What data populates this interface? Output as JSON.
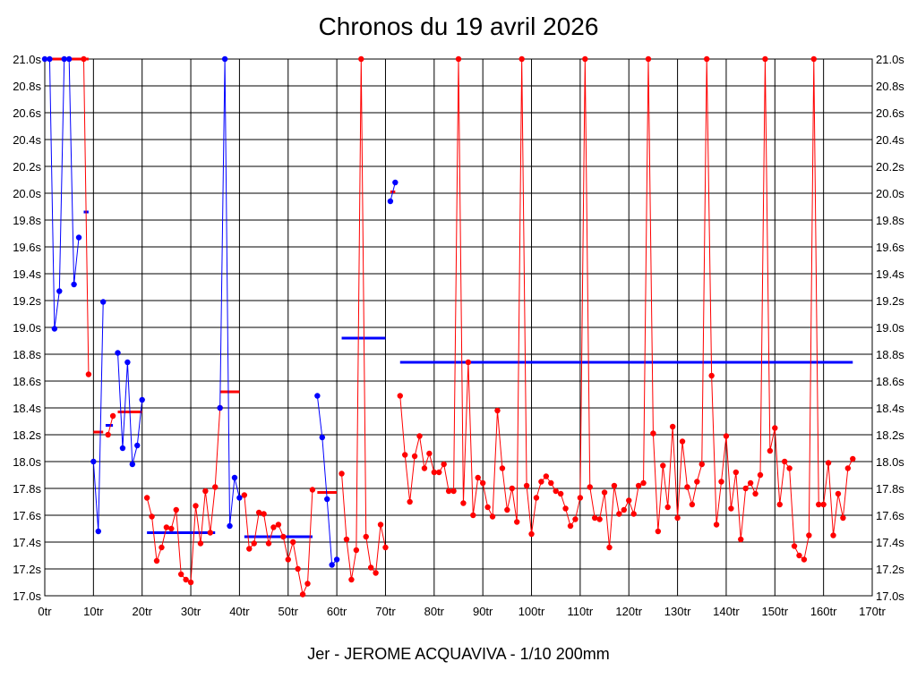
{
  "colors": {
    "background": "#ffffff",
    "grid": "#000000",
    "series_a": "#ff0000",
    "series_b": "#0000ff"
  },
  "chart_data": {
    "type": "line",
    "title": "Chronos du 19 avril 2026",
    "caption": "Jer - JEROME ACQUAVIVA - 1/10 200mm",
    "xlim": [
      0,
      170
    ],
    "ylim": [
      17.0,
      21.0
    ],
    "grid": true,
    "x_ticks": [
      0,
      10,
      20,
      30,
      40,
      50,
      60,
      70,
      80,
      90,
      100,
      110,
      120,
      130,
      140,
      150,
      160,
      170
    ],
    "x_tick_labels": [
      "0tr",
      "10tr",
      "20tr",
      "30tr",
      "40tr",
      "50tr",
      "60tr",
      "70tr",
      "80tr",
      "90tr",
      "100tr",
      "110tr",
      "120tr",
      "130tr",
      "140tr",
      "150tr",
      "160tr",
      "170tr"
    ],
    "y_ticks": [
      17.0,
      17.2,
      17.4,
      17.6,
      17.8,
      18.0,
      18.2,
      18.4,
      18.6,
      18.8,
      19.0,
      19.2,
      19.4,
      19.6,
      19.8,
      20.0,
      20.2,
      20.4,
      20.6,
      20.8,
      21.0
    ],
    "y_tick_labels": [
      "17.0s",
      "17.2s",
      "17.4s",
      "17.6s",
      "17.8s",
      "18.0s",
      "18.2s",
      "18.4s",
      "18.6s",
      "18.8s",
      "19.0s",
      "19.2s",
      "19.4s",
      "19.6s",
      "19.8s",
      "20.0s",
      "20.2s",
      "20.4s",
      "20.6s",
      "20.8s",
      "21.0s"
    ],
    "series": [
      {
        "color": "#0000ff",
        "x": [
          0,
          1,
          2,
          3,
          4,
          5,
          6,
          7
        ],
        "y": [
          21.0,
          21.0,
          18.99,
          19.27,
          21.0,
          21.0,
          19.32,
          19.67
        ]
      },
      {
        "color": "#ff0000",
        "x": [
          8,
          9
        ],
        "y": [
          21.0,
          18.65
        ]
      },
      {
        "color": "#0000ff",
        "x": [
          10,
          11,
          12
        ],
        "y": [
          18.0,
          17.48,
          19.19
        ]
      },
      {
        "color": "#ff0000",
        "x": [
          13,
          14
        ],
        "y": [
          18.2,
          18.34
        ]
      },
      {
        "color": "#0000ff",
        "x": [
          15,
          16,
          17,
          18,
          19,
          20
        ],
        "y": [
          18.81,
          18.1,
          18.74,
          17.98,
          18.12,
          18.46
        ]
      },
      {
        "color": "#ff0000",
        "x": [
          21,
          22,
          23,
          24,
          25,
          26,
          27,
          28,
          29,
          30,
          31,
          32,
          33,
          34,
          35,
          36
        ],
        "y": [
          17.73,
          17.59,
          17.26,
          17.36,
          17.51,
          17.5,
          17.64,
          17.16,
          17.12,
          17.1,
          17.67,
          17.39,
          17.78,
          17.47,
          17.81,
          18.4
        ]
      },
      {
        "color": "#0000ff",
        "x": [
          36,
          37,
          38,
          39,
          40
        ],
        "y": [
          18.4,
          21.0,
          17.52,
          17.88,
          17.73
        ]
      },
      {
        "color": "#ff0000",
        "x": [
          41,
          42,
          43,
          44,
          45,
          46,
          47,
          48,
          49,
          50,
          51,
          52,
          53,
          54,
          55
        ],
        "y": [
          17.75,
          17.35,
          17.39,
          17.62,
          17.61,
          17.39,
          17.51,
          17.53,
          17.44,
          17.27,
          17.4,
          17.2,
          17.01,
          17.09,
          17.79
        ]
      },
      {
        "color": "#0000ff",
        "x": [
          56,
          57,
          58,
          59,
          60
        ],
        "y": [
          18.49,
          18.18,
          17.72,
          17.23,
          17.27
        ]
      },
      {
        "color": "#ff0000",
        "x": [
          61,
          62,
          63,
          64,
          65,
          66,
          67,
          68,
          69,
          70
        ],
        "y": [
          17.91,
          17.42,
          17.12,
          17.34,
          21.0,
          17.44,
          17.21,
          17.17,
          17.53,
          17.36
        ]
      },
      {
        "color": "#0000ff",
        "x": [
          71,
          72
        ],
        "y": [
          19.94,
          20.08
        ]
      },
      {
        "color": "#ff0000",
        "x": [
          73,
          74,
          75,
          76,
          77,
          78,
          79,
          80,
          81,
          82,
          83,
          84,
          85,
          86,
          87,
          88,
          89,
          90,
          91,
          92,
          93,
          94,
          95,
          96,
          97,
          98,
          99,
          100,
          101,
          102,
          103,
          104,
          105,
          106,
          107,
          108,
          109,
          110,
          111,
          112,
          113,
          114,
          115,
          116,
          117,
          118,
          119,
          120,
          121,
          122,
          123,
          124,
          125,
          126,
          127,
          128,
          129,
          130,
          131,
          132,
          133,
          134,
          135,
          136,
          137,
          138,
          139,
          140,
          141,
          142,
          143,
          144,
          145,
          146,
          147,
          148,
          149,
          150,
          151,
          152,
          153,
          154,
          155,
          156,
          157,
          158,
          159,
          160,
          161,
          162,
          163,
          164,
          165,
          166
        ],
        "y": [
          18.49,
          18.05,
          17.7,
          18.04,
          18.19,
          17.95,
          18.06,
          17.92,
          17.92,
          17.98,
          17.78,
          17.78,
          21.0,
          17.69,
          18.74,
          17.6,
          17.88,
          17.84,
          17.66,
          17.59,
          18.38,
          17.95,
          17.64,
          17.8,
          17.55,
          21.0,
          17.82,
          17.46,
          17.73,
          17.85,
          17.89,
          17.84,
          17.78,
          17.76,
          17.65,
          17.52,
          17.57,
          17.73,
          21.0,
          17.81,
          17.58,
          17.57,
          17.77,
          17.36,
          17.82,
          17.61,
          17.64,
          17.71,
          17.61,
          17.82,
          17.84,
          21.0,
          18.21,
          17.48,
          17.97,
          17.66,
          18.26,
          17.58,
          18.15,
          17.81,
          17.68,
          17.85,
          17.98,
          21.0,
          18.64,
          17.53,
          17.85,
          18.19,
          17.65,
          17.92,
          17.42,
          17.8,
          17.84,
          17.76,
          17.9,
          21.0,
          18.08,
          18.25,
          17.68,
          18.0,
          17.95,
          17.37,
          17.3,
          17.27,
          17.45,
          21.0,
          17.68,
          17.68,
          17.99,
          17.45,
          17.76,
          17.58,
          17.95,
          18.02
        ]
      }
    ],
    "average_lines": [
      {
        "color": "#ff0000",
        "x_start": 0,
        "x_end": 9,
        "value": 21.0
      },
      {
        "color": "#0000ff",
        "x_start": 8,
        "x_end": 9,
        "value": 19.86
      },
      {
        "color": "#ff0000",
        "x_start": 10,
        "x_end": 12,
        "value": 18.22
      },
      {
        "color": "#0000ff",
        "x_start": 12.5,
        "x_end": 14,
        "value": 18.27
      },
      {
        "color": "#ff0000",
        "x_start": 15,
        "x_end": 20,
        "value": 18.37
      },
      {
        "color": "#0000ff",
        "x_start": 21,
        "x_end": 35,
        "value": 17.47
      },
      {
        "color": "#ff0000",
        "x_start": 36,
        "x_end": 40,
        "value": 18.52
      },
      {
        "color": "#0000ff",
        "x_start": 41,
        "x_end": 55,
        "value": 17.44
      },
      {
        "color": "#ff0000",
        "x_start": 56,
        "x_end": 60,
        "value": 17.77
      },
      {
        "color": "#0000ff",
        "x_start": 61,
        "x_end": 70,
        "value": 18.92
      },
      {
        "color": "#ff0000",
        "x_start": 71,
        "x_end": 72,
        "value": 20.01
      },
      {
        "color": "#0000ff",
        "x_start": 73,
        "x_end": 166,
        "value": 18.74
      }
    ]
  }
}
